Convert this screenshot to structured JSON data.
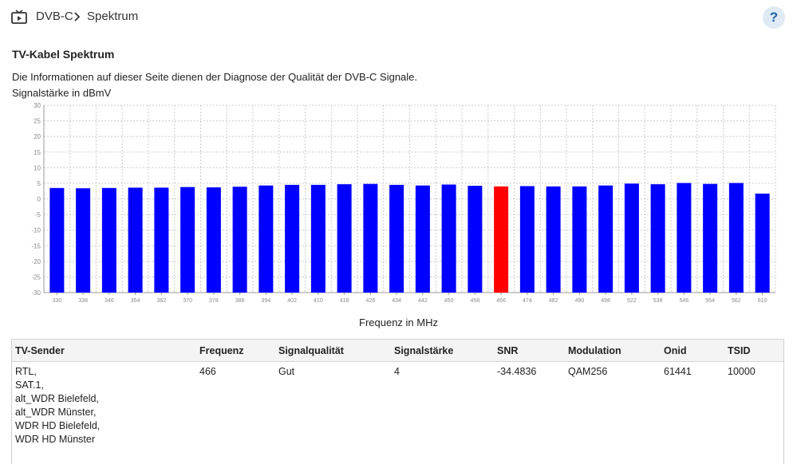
{
  "header": {
    "breadcrumb": [
      "DVB-C",
      "Spektrum"
    ],
    "help_label": "?"
  },
  "page": {
    "title": "TV-Kabel Spektrum",
    "description": "Die Informationen auf dieser Seite dienen der Diagnose der Qualität der DVB-C Signale."
  },
  "colors": {
    "bar": "#0000ff",
    "bar_selected": "#ff0000",
    "grid": "#cccccc"
  },
  "chart_data": {
    "type": "bar",
    "ylabel": "Signalstärke in dBmV",
    "xlabel": "Frequenz in MHz",
    "ylim": [
      -30,
      30
    ],
    "yticks": [
      30,
      25,
      20,
      15,
      10,
      5,
      0,
      -5,
      -10,
      -15,
      -20,
      -25,
      -30
    ],
    "categories": [
      "330",
      "338",
      "346",
      "354",
      "362",
      "370",
      "378",
      "386",
      "394",
      "402",
      "410",
      "418",
      "426",
      "434",
      "442",
      "450",
      "458",
      "466",
      "474",
      "482",
      "490",
      "498",
      "522",
      "538",
      "546",
      "554",
      "562",
      "610"
    ],
    "values": [
      3.5,
      3.4,
      3.5,
      3.6,
      3.6,
      3.8,
      3.7,
      3.9,
      4.3,
      4.5,
      4.5,
      4.7,
      4.8,
      4.5,
      4.3,
      4.6,
      4.2,
      4.0,
      4.1,
      4.0,
      4.0,
      4.3,
      4.9,
      4.7,
      5.1,
      4.8,
      5.1,
      1.7
    ],
    "selected_category": "466"
  },
  "table": {
    "columns": [
      "TV-Sender",
      "Frequenz",
      "Signalqualität",
      "Signalstärke",
      "SNR",
      "Modulation",
      "Onid",
      "TSID"
    ],
    "rows": [
      {
        "senders": [
          "RTL,",
          "SAT.1,",
          "alt_WDR Bielefeld,",
          "alt_WDR Münster,",
          "WDR HD Bielefeld,",
          "WDR HD Münster"
        ],
        "frequenz": "466",
        "qualitaet": "Gut",
        "staerke": "4",
        "snr": "-34.4836",
        "modulation": "QAM256",
        "onid": "61441",
        "tsid": "10000"
      }
    ]
  }
}
